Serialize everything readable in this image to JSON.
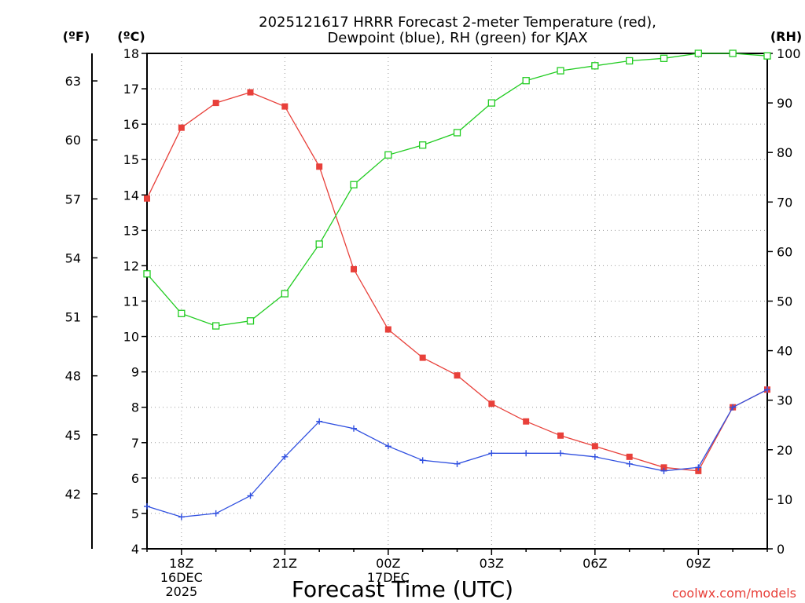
{
  "chart_data": {
    "type": "line",
    "title": [
      "2025121617 HRRR Forecast 2-meter Temperature (red),",
      "Dewpoint (blue), RH (green) for KJAX"
    ],
    "xlabel": "Forecast Time (UTC)",
    "units": {
      "fahrenheit": "(ºF)",
      "celsius": "(ºC)",
      "rh": "(RH)"
    },
    "x_hours": [
      17,
      18,
      19,
      20,
      21,
      22,
      23,
      24,
      25,
      26,
      27,
      28,
      29,
      30,
      31,
      32,
      33,
      34,
      35
    ],
    "x_ticks": [
      {
        "hour": 18,
        "lines": [
          "18Z",
          "16DEC",
          "2025"
        ]
      },
      {
        "hour": 21,
        "lines": [
          "21Z"
        ]
      },
      {
        "hour": 24,
        "lines": [
          "00Z",
          "17DEC"
        ]
      },
      {
        "hour": 27,
        "lines": [
          "03Z"
        ]
      },
      {
        "hour": 30,
        "lines": [
          "06Z"
        ]
      },
      {
        "hour": 33,
        "lines": [
          "09Z"
        ]
      }
    ],
    "xlim": [
      17,
      35
    ],
    "ylim_celsius": [
      4,
      18
    ],
    "yticks_celsius": [
      4,
      5,
      6,
      7,
      8,
      9,
      10,
      11,
      12,
      13,
      14,
      15,
      16,
      17,
      18
    ],
    "yticks_fahrenheit": [
      42,
      45,
      48,
      51,
      54,
      57,
      60,
      63
    ],
    "ylim_rh": [
      0,
      100
    ],
    "yticks_rh": [
      0,
      10,
      20,
      30,
      40,
      50,
      60,
      70,
      80,
      90,
      100
    ],
    "series": [
      {
        "name": "2-meter Temperature",
        "axis": "celsius",
        "color": "#e8403a",
        "marker": "filled-square",
        "values": [
          13.9,
          15.9,
          16.6,
          16.9,
          16.5,
          14.8,
          11.9,
          10.2,
          9.4,
          8.9,
          8.1,
          7.6,
          7.2,
          6.9,
          6.6,
          6.3,
          6.2,
          8.0,
          8.5
        ]
      },
      {
        "name": "Dewpoint",
        "axis": "celsius",
        "color": "#3050e0",
        "marker": "plus",
        "values": [
          5.2,
          4.9,
          5.0,
          5.5,
          6.6,
          7.6,
          7.4,
          6.9,
          6.5,
          6.4,
          6.7,
          6.7,
          6.7,
          6.6,
          6.4,
          6.2,
          6.3,
          8.0,
          8.5
        ]
      },
      {
        "name": "Relative Humidity",
        "axis": "rh",
        "color": "#22cc22",
        "marker": "open-square",
        "values": [
          55.5,
          47.5,
          45,
          46,
          51.5,
          61.5,
          73.5,
          79.5,
          81.5,
          84,
          90,
          94.5,
          96.5,
          97.5,
          98.5,
          99,
          100,
          100,
          99.5
        ]
      }
    ]
  },
  "credit": "coolwx.com/models"
}
